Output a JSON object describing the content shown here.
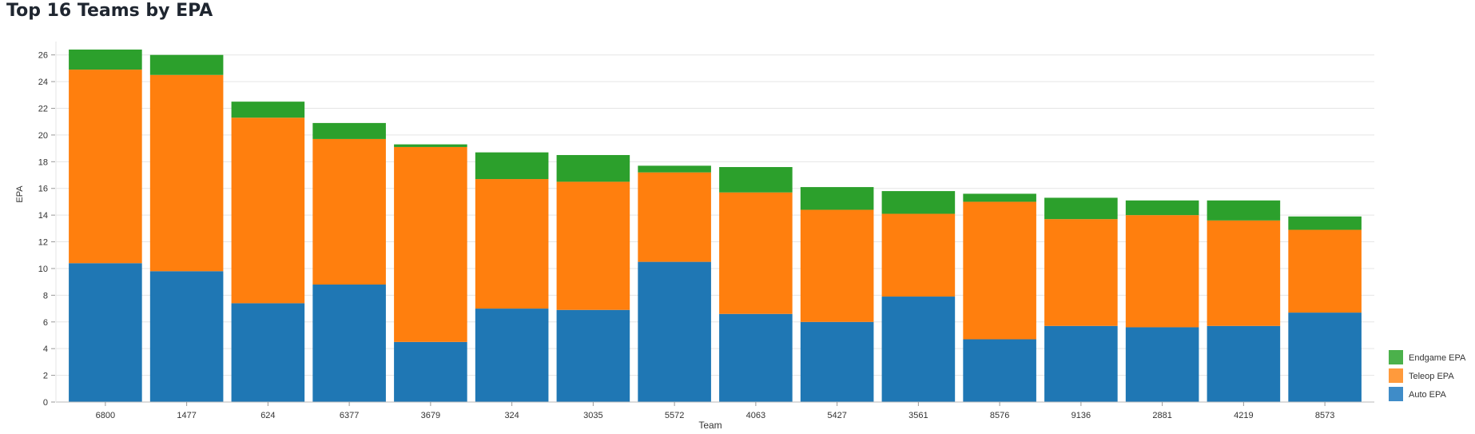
{
  "page": {
    "title": "Top 16 Teams by EPA"
  },
  "chart_data": {
    "type": "bar",
    "stacked": true,
    "title": "Top 16 Teams by EPA",
    "xlabel": "Team",
    "ylabel": "EPA",
    "ylim": [
      0,
      27
    ],
    "yticks": [
      0,
      2,
      4,
      6,
      8,
      10,
      12,
      14,
      16,
      18,
      20,
      22,
      24,
      26
    ],
    "grid": true,
    "legend_position": "bottom-right",
    "categories": [
      "6800",
      "1477",
      "624",
      "6377",
      "3679",
      "324",
      "3035",
      "5572",
      "4063",
      "5427",
      "3561",
      "8576",
      "9136",
      "2881",
      "4219",
      "8573"
    ],
    "series": [
      {
        "name": "Auto EPA",
        "color": "#1f77b4",
        "values": [
          10.4,
          9.8,
          7.4,
          8.8,
          4.5,
          7.0,
          6.9,
          10.5,
          6.6,
          6.0,
          7.9,
          4.7,
          5.7,
          5.6,
          5.7,
          6.7
        ]
      },
      {
        "name": "Teleop EPA",
        "color": "#ff7f0e",
        "values": [
          14.5,
          14.7,
          13.9,
          10.9,
          14.6,
          9.7,
          9.6,
          6.7,
          9.1,
          8.4,
          6.2,
          10.3,
          8.0,
          8.4,
          7.9,
          6.2
        ]
      },
      {
        "name": "Endgame EPA",
        "color": "#2ca02c",
        "values": [
          1.5,
          1.5,
          1.2,
          1.2,
          0.2,
          2.0,
          2.0,
          0.5,
          1.9,
          1.7,
          1.7,
          0.6,
          1.6,
          1.1,
          1.5,
          1.0
        ]
      }
    ],
    "legend_order": [
      "Endgame EPA",
      "Teleop EPA",
      "Auto EPA"
    ],
    "legend_colors": {
      "Endgame EPA": "#4bb14b",
      "Teleop EPA": "#ff9a3c",
      "Auto EPA": "#3f8cc8"
    }
  }
}
